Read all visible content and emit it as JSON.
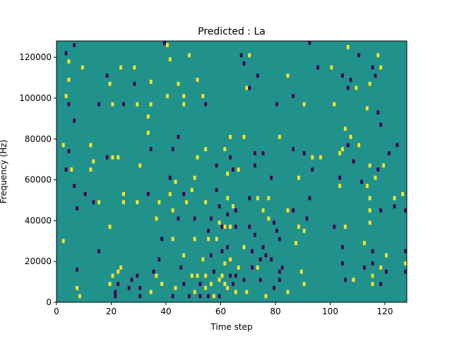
{
  "chart_data": {
    "type": "heatmap",
    "title": "Predicted : La",
    "xlabel": "Time step",
    "ylabel": "Frequency (Hz)",
    "xlim": [
      0,
      128
    ],
    "ylim": [
      0,
      128000
    ],
    "x_ticks": [
      0,
      20,
      40,
      60,
      80,
      100,
      120
    ],
    "x_tick_labels": [
      "0",
      "20",
      "40",
      "60",
      "80",
      "100",
      "120"
    ],
    "y_ticks": [
      0,
      20000,
      40000,
      60000,
      80000,
      100000,
      120000
    ],
    "y_tick_labels": [
      "0",
      "20000",
      "40000",
      "60000",
      "80000",
      "100000",
      "120000"
    ],
    "grid": false,
    "background_value": 0,
    "colors": {
      "low": "#440154",
      "mid": "#21918c",
      "high": "#fde725"
    },
    "cells_note_units": "x = time step, y = frequency in Hz (bin height 2000 Hz), value -1 low / +1 high",
    "cells": [
      {
        "x": 6,
        "y": 125000,
        "v": -1
      },
      {
        "x": 3,
        "y": 121000,
        "v": -1
      },
      {
        "x": 4,
        "y": 117000,
        "v": 1
      },
      {
        "x": 9,
        "y": 114000,
        "v": 1
      },
      {
        "x": 4,
        "y": 108000,
        "v": 1
      },
      {
        "x": 3,
        "y": 100000,
        "v": 1
      },
      {
        "x": 4,
        "y": 96000,
        "v": -1
      },
      {
        "x": 6,
        "y": 88000,
        "v": -1
      },
      {
        "x": 2,
        "y": 76000,
        "v": 1
      },
      {
        "x": 4,
        "y": 73000,
        "v": -1
      },
      {
        "x": 3,
        "y": 64000,
        "v": -1
      },
      {
        "x": 5,
        "y": 64000,
        "v": 1
      },
      {
        "x": 6,
        "y": 56000,
        "v": -1
      },
      {
        "x": 7,
        "y": 45000,
        "v": -1
      },
      {
        "x": 2,
        "y": 29000,
        "v": 1
      },
      {
        "x": 7,
        "y": 15000,
        "v": -1
      },
      {
        "x": 7,
        "y": 6000,
        "v": 1
      },
      {
        "x": 8,
        "y": 2000,
        "v": 1
      },
      {
        "x": 10,
        "y": 52000,
        "v": -1
      },
      {
        "x": 12,
        "y": 76000,
        "v": 1
      },
      {
        "x": 13,
        "y": 68000,
        "v": 1
      },
      {
        "x": 12,
        "y": 64000,
        "v": 1
      },
      {
        "x": 13,
        "y": 48000,
        "v": -1
      },
      {
        "x": 15,
        "y": 48000,
        "v": 1
      },
      {
        "x": 15,
        "y": 96000,
        "v": -1
      },
      {
        "x": 18,
        "y": 110000,
        "v": -1
      },
      {
        "x": 19,
        "y": 106000,
        "v": 1
      },
      {
        "x": 20,
        "y": 96000,
        "v": 1
      },
      {
        "x": 18,
        "y": 70000,
        "v": -1
      },
      {
        "x": 20,
        "y": 70000,
        "v": 1
      },
      {
        "x": 22,
        "y": 70000,
        "v": 1
      },
      {
        "x": 19,
        "y": 36000,
        "v": 1
      },
      {
        "x": 15,
        "y": 24000,
        "v": -1
      },
      {
        "x": 20,
        "y": 12000,
        "v": 1
      },
      {
        "x": 19,
        "y": 8000,
        "v": 1
      },
      {
        "x": 22,
        "y": 14000,
        "v": 1
      },
      {
        "x": 23,
        "y": 16000,
        "v": 1
      },
      {
        "x": 22,
        "y": 8000,
        "v": -1
      },
      {
        "x": 21,
        "y": 4000,
        "v": -1
      },
      {
        "x": 21,
        "y": 2000,
        "v": -1
      },
      {
        "x": 23,
        "y": 114000,
        "v": 1
      },
      {
        "x": 24,
        "y": 96000,
        "v": -1
      },
      {
        "x": 24,
        "y": 48000,
        "v": 1
      },
      {
        "x": 24,
        "y": 52000,
        "v": 1
      },
      {
        "x": 26,
        "y": 6000,
        "v": -1
      },
      {
        "x": 27,
        "y": 10000,
        "v": -1
      },
      {
        "x": 28,
        "y": 114000,
        "v": 1
      },
      {
        "x": 28,
        "y": 106000,
        "v": -1
      },
      {
        "x": 29,
        "y": 96000,
        "v": 1
      },
      {
        "x": 29,
        "y": 48000,
        "v": 1
      },
      {
        "x": 30,
        "y": 66000,
        "v": 1
      },
      {
        "x": 29,
        "y": 12000,
        "v": -1
      },
      {
        "x": 30,
        "y": 6000,
        "v": -1
      },
      {
        "x": 30,
        "y": 2000,
        "v": -1
      },
      {
        "x": 33,
        "y": 82000,
        "v": 1
      },
      {
        "x": 33,
        "y": 90000,
        "v": 1
      },
      {
        "x": 34,
        "y": 107000,
        "v": 1
      },
      {
        "x": 34,
        "y": 96000,
        "v": 1
      },
      {
        "x": 34,
        "y": 74000,
        "v": -1
      },
      {
        "x": 33,
        "y": 52000,
        "v": -1
      },
      {
        "x": 35,
        "y": 14000,
        "v": -1
      },
      {
        "x": 34,
        "y": 4000,
        "v": 1
      },
      {
        "x": 36,
        "y": 40000,
        "v": 1
      },
      {
        "x": 37,
        "y": 48000,
        "v": 1
      },
      {
        "x": 38,
        "y": 30000,
        "v": -1
      },
      {
        "x": 37,
        "y": 20000,
        "v": -1
      },
      {
        "x": 36,
        "y": 12000,
        "v": 1
      },
      {
        "x": 38,
        "y": 8000,
        "v": 1
      },
      {
        "x": 39,
        "y": 126000,
        "v": -1
      },
      {
        "x": 40,
        "y": 125000,
        "v": 1
      },
      {
        "x": 41,
        "y": 118000,
        "v": 1
      },
      {
        "x": 40,
        "y": 100000,
        "v": 1
      },
      {
        "x": 42,
        "y": 74000,
        "v": -1
      },
      {
        "x": 41,
        "y": 60000,
        "v": -1
      },
      {
        "x": 41,
        "y": 52000,
        "v": 1
      },
      {
        "x": 42,
        "y": 44000,
        "v": 1
      },
      {
        "x": 44,
        "y": 106000,
        "v": 1
      },
      {
        "x": 44,
        "y": 80000,
        "v": -1
      },
      {
        "x": 43,
        "y": 58000,
        "v": 1
      },
      {
        "x": 44,
        "y": 40000,
        "v": -1
      },
      {
        "x": 42,
        "y": 30000,
        "v": 1
      },
      {
        "x": 42,
        "y": 2000,
        "v": -1
      },
      {
        "x": 43,
        "y": 6000,
        "v": 1
      },
      {
        "x": 46,
        "y": 100000,
        "v": 1
      },
      {
        "x": 46,
        "y": 96000,
        "v": 1
      },
      {
        "x": 46,
        "y": 52000,
        "v": -1
      },
      {
        "x": 47,
        "y": 48000,
        "v": 1
      },
      {
        "x": 46,
        "y": 22000,
        "v": 1
      },
      {
        "x": 45,
        "y": 16000,
        "v": -1
      },
      {
        "x": 46,
        "y": 8000,
        "v": -1
      },
      {
        "x": 48,
        "y": 120000,
        "v": 1
      },
      {
        "x": 49,
        "y": 54000,
        "v": 1
      },
      {
        "x": 49,
        "y": 12000,
        "v": 1
      },
      {
        "x": 48,
        "y": 2000,
        "v": -1
      },
      {
        "x": 50,
        "y": 60000,
        "v": 1
      },
      {
        "x": 50,
        "y": 30000,
        "v": 1
      },
      {
        "x": 50,
        "y": 40000,
        "v": -1
      },
      {
        "x": 50,
        "y": 4000,
        "v": 1
      },
      {
        "x": 51,
        "y": 108000,
        "v": 1
      },
      {
        "x": 51,
        "y": 70000,
        "v": 1
      },
      {
        "x": 51,
        "y": 12000,
        "v": 1
      },
      {
        "x": 52,
        "y": 8000,
        "v": -1
      },
      {
        "x": 53,
        "y": 100000,
        "v": 1
      },
      {
        "x": 53,
        "y": 20000,
        "v": 1
      },
      {
        "x": 52,
        "y": 2000,
        "v": -1
      },
      {
        "x": 54,
        "y": 96000,
        "v": -1
      },
      {
        "x": 54,
        "y": 74000,
        "v": 1
      },
      {
        "x": 54,
        "y": 48000,
        "v": 1
      },
      {
        "x": 55,
        "y": 30000,
        "v": 1
      },
      {
        "x": 55,
        "y": 34000,
        "v": -1
      },
      {
        "x": 54,
        "y": 12000,
        "v": 1
      },
      {
        "x": 54,
        "y": 6000,
        "v": 1
      },
      {
        "x": 55,
        "y": 2000,
        "v": -1
      },
      {
        "x": 56,
        "y": 40000,
        "v": -1
      },
      {
        "x": 56,
        "y": 22000,
        "v": -1
      },
      {
        "x": 56,
        "y": 8000,
        "v": 1
      },
      {
        "x": 57,
        "y": 14000,
        "v": -1
      },
      {
        "x": 57,
        "y": 2000,
        "v": 1
      },
      {
        "x": 58,
        "y": 66000,
        "v": -1
      },
      {
        "x": 58,
        "y": 54000,
        "v": -1
      },
      {
        "x": 58,
        "y": 30000,
        "v": 1
      },
      {
        "x": 59,
        "y": 46000,
        "v": -1
      },
      {
        "x": 59,
        "y": 38000,
        "v": 1
      },
      {
        "x": 59,
        "y": 10000,
        "v": 1
      },
      {
        "x": 59,
        "y": 2000,
        "v": -1
      },
      {
        "x": 60,
        "y": 36000,
        "v": -1
      },
      {
        "x": 60,
        "y": 24000,
        "v": -1
      },
      {
        "x": 60,
        "y": 12000,
        "v": 1
      },
      {
        "x": 61,
        "y": 74000,
        "v": 1
      },
      {
        "x": 61,
        "y": 36000,
        "v": 1
      },
      {
        "x": 61,
        "y": 18000,
        "v": 1
      },
      {
        "x": 61,
        "y": 8000,
        "v": 1
      },
      {
        "x": 62,
        "y": 62000,
        "v": 1
      },
      {
        "x": 62,
        "y": 50000,
        "v": 1
      },
      {
        "x": 62,
        "y": 42000,
        "v": -1
      },
      {
        "x": 62,
        "y": 26000,
        "v": -1
      },
      {
        "x": 62,
        "y": 6000,
        "v": 1
      },
      {
        "x": 63,
        "y": 80000,
        "v": 1
      },
      {
        "x": 63,
        "y": 70000,
        "v": -1
      },
      {
        "x": 63,
        "y": 36000,
        "v": 1
      },
      {
        "x": 63,
        "y": 20000,
        "v": 1
      },
      {
        "x": 63,
        "y": 12000,
        "v": -1
      },
      {
        "x": 64,
        "y": 64000,
        "v": -1
      },
      {
        "x": 64,
        "y": 46000,
        "v": 1
      },
      {
        "x": 64,
        "y": 8000,
        "v": -1
      },
      {
        "x": 65,
        "y": 44000,
        "v": -1
      },
      {
        "x": 65,
        "y": 36000,
        "v": -1
      },
      {
        "x": 65,
        "y": 12000,
        "v": -1
      },
      {
        "x": 65,
        "y": 4000,
        "v": 1
      },
      {
        "x": 66,
        "y": 64000,
        "v": 1
      },
      {
        "x": 66,
        "y": 16000,
        "v": 1
      },
      {
        "x": 67,
        "y": 120000,
        "v": -1
      },
      {
        "x": 68,
        "y": 116000,
        "v": -1
      },
      {
        "x": 68,
        "y": 80000,
        "v": 1
      },
      {
        "x": 68,
        "y": 26000,
        "v": 1
      },
      {
        "x": 68,
        "y": 10000,
        "v": -1
      },
      {
        "x": 69,
        "y": 104000,
        "v": 1
      },
      {
        "x": 70,
        "y": 120000,
        "v": 1
      },
      {
        "x": 70,
        "y": 104000,
        "v": -1
      },
      {
        "x": 70,
        "y": 50000,
        "v": -1
      },
      {
        "x": 70,
        "y": 36000,
        "v": -1
      },
      {
        "x": 69,
        "y": 4000,
        "v": 1
      },
      {
        "x": 71,
        "y": 24000,
        "v": -1
      },
      {
        "x": 71,
        "y": 16000,
        "v": -1
      },
      {
        "x": 72,
        "y": 72000,
        "v": -1
      },
      {
        "x": 72,
        "y": 66000,
        "v": -1
      },
      {
        "x": 72,
        "y": 32000,
        "v": -1
      },
      {
        "x": 73,
        "y": 110000,
        "v": -1
      },
      {
        "x": 73,
        "y": 50000,
        "v": 1
      },
      {
        "x": 73,
        "y": 16000,
        "v": 1
      },
      {
        "x": 74,
        "y": 20000,
        "v": -1
      },
      {
        "x": 74,
        "y": 10000,
        "v": -1
      },
      {
        "x": 75,
        "y": 72000,
        "v": -1
      },
      {
        "x": 75,
        "y": 44000,
        "v": 1
      },
      {
        "x": 75,
        "y": 26000,
        "v": -1
      },
      {
        "x": 76,
        "y": 22000,
        "v": -1
      },
      {
        "x": 76,
        "y": 2000,
        "v": 1
      },
      {
        "x": 77,
        "y": 50000,
        "v": 1
      },
      {
        "x": 77,
        "y": 40000,
        "v": 1
      },
      {
        "x": 78,
        "y": 60000,
        "v": -1
      },
      {
        "x": 78,
        "y": 20000,
        "v": -1
      },
      {
        "x": 79,
        "y": 38000,
        "v": -1
      },
      {
        "x": 79,
        "y": 6000,
        "v": -1
      },
      {
        "x": 80,
        "y": 96000,
        "v": -1
      },
      {
        "x": 80,
        "y": 34000,
        "v": -1
      },
      {
        "x": 81,
        "y": 80000,
        "v": 1
      },
      {
        "x": 81,
        "y": 30000,
        "v": -1
      },
      {
        "x": 81,
        "y": 14000,
        "v": -1
      },
      {
        "x": 81,
        "y": 10000,
        "v": -1
      },
      {
        "x": 82,
        "y": 16000,
        "v": -1
      },
      {
        "x": 84,
        "y": 110000,
        "v": 1
      },
      {
        "x": 84,
        "y": 44000,
        "v": 1
      },
      {
        "x": 84,
        "y": 4000,
        "v": 1
      },
      {
        "x": 86,
        "y": 100000,
        "v": -1
      },
      {
        "x": 86,
        "y": 74000,
        "v": -1
      },
      {
        "x": 86,
        "y": 44000,
        "v": -1
      },
      {
        "x": 87,
        "y": 28000,
        "v": 1
      },
      {
        "x": 88,
        "y": 60000,
        "v": 1
      },
      {
        "x": 88,
        "y": 36000,
        "v": 1
      },
      {
        "x": 90,
        "y": 96000,
        "v": 1
      },
      {
        "x": 90,
        "y": 72000,
        "v": -1
      },
      {
        "x": 90,
        "y": 34000,
        "v": 1
      },
      {
        "x": 89,
        "y": 14000,
        "v": 1
      },
      {
        "x": 90,
        "y": 8000,
        "v": 1
      },
      {
        "x": 91,
        "y": 40000,
        "v": -1
      },
      {
        "x": 92,
        "y": 126000,
        "v": -1
      },
      {
        "x": 92,
        "y": 50000,
        "v": -1
      },
      {
        "x": 93,
        "y": 70000,
        "v": 1
      },
      {
        "x": 93,
        "y": 64000,
        "v": -1
      },
      {
        "x": 95,
        "y": 114000,
        "v": -1
      },
      {
        "x": 96,
        "y": 70000,
        "v": 1
      },
      {
        "x": 100,
        "y": 114000,
        "v": 1
      },
      {
        "x": 101,
        "y": 96000,
        "v": 1
      },
      {
        "x": 101,
        "y": 36000,
        "v": -1
      },
      {
        "x": 103,
        "y": 72000,
        "v": 1
      },
      {
        "x": 103,
        "y": 60000,
        "v": -1
      },
      {
        "x": 103,
        "y": 56000,
        "v": 1
      },
      {
        "x": 104,
        "y": 110000,
        "v": -1
      },
      {
        "x": 104,
        "y": 74000,
        "v": 1
      },
      {
        "x": 105,
        "y": 84000,
        "v": 1
      },
      {
        "x": 105,
        "y": 36000,
        "v": 1
      },
      {
        "x": 105,
        "y": 10000,
        "v": -1
      },
      {
        "x": 104,
        "y": 26000,
        "v": -1
      },
      {
        "x": 104,
        "y": 18000,
        "v": -1
      },
      {
        "x": 106,
        "y": 124000,
        "v": 1
      },
      {
        "x": 106,
        "y": 104000,
        "v": -1
      },
      {
        "x": 106,
        "y": 76000,
        "v": -1
      },
      {
        "x": 107,
        "y": 108000,
        "v": -1
      },
      {
        "x": 107,
        "y": 80000,
        "v": 1
      },
      {
        "x": 108,
        "y": 68000,
        "v": -1
      },
      {
        "x": 108,
        "y": 10000,
        "v": 1
      },
      {
        "x": 109,
        "y": 104000,
        "v": 1
      },
      {
        "x": 110,
        "y": 120000,
        "v": -1
      },
      {
        "x": 110,
        "y": 76000,
        "v": 1
      },
      {
        "x": 111,
        "y": 58000,
        "v": -1
      },
      {
        "x": 112,
        "y": 28000,
        "v": 1
      },
      {
        "x": 112,
        "y": 16000,
        "v": -1
      },
      {
        "x": 113,
        "y": 94000,
        "v": 1
      },
      {
        "x": 113,
        "y": 56000,
        "v": 1
      },
      {
        "x": 114,
        "y": 50000,
        "v": 1
      },
      {
        "x": 114,
        "y": 44000,
        "v": 1
      },
      {
        "x": 114,
        "y": 38000,
        "v": 1
      },
      {
        "x": 114,
        "y": 106000,
        "v": 1
      },
      {
        "x": 114,
        "y": 66000,
        "v": 1
      },
      {
        "x": 115,
        "y": 114000,
        "v": -1
      },
      {
        "x": 115,
        "y": 24000,
        "v": -1
      },
      {
        "x": 115,
        "y": 18000,
        "v": -1
      },
      {
        "x": 115,
        "y": 12000,
        "v": 1
      },
      {
        "x": 115,
        "y": 8000,
        "v": 1
      },
      {
        "x": 116,
        "y": 110000,
        "v": -1
      },
      {
        "x": 116,
        "y": 60000,
        "v": 1
      },
      {
        "x": 117,
        "y": 120000,
        "v": 1
      },
      {
        "x": 117,
        "y": 92000,
        "v": -1
      },
      {
        "x": 117,
        "y": 64000,
        "v": -1
      },
      {
        "x": 118,
        "y": 114000,
        "v": 1
      },
      {
        "x": 118,
        "y": 86000,
        "v": -1
      },
      {
        "x": 118,
        "y": 44000,
        "v": -1
      },
      {
        "x": 118,
        "y": 16000,
        "v": 1
      },
      {
        "x": 118,
        "y": 8000,
        "v": -1
      },
      {
        "x": 119,
        "y": 66000,
        "v": 1
      },
      {
        "x": 120,
        "y": 22000,
        "v": 1
      },
      {
        "x": 120,
        "y": 14000,
        "v": -1
      },
      {
        "x": 121,
        "y": 72000,
        "v": -1
      },
      {
        "x": 123,
        "y": 50000,
        "v": 1
      },
      {
        "x": 123,
        "y": 46000,
        "v": -1
      },
      {
        "x": 124,
        "y": 76000,
        "v": -1
      },
      {
        "x": 126,
        "y": 52000,
        "v": 1
      },
      {
        "x": 127,
        "y": 44000,
        "v": -1
      },
      {
        "x": 127,
        "y": 18000,
        "v": 1
      },
      {
        "x": 127,
        "y": 14000,
        "v": -1
      },
      {
        "x": 127,
        "y": 24000,
        "v": -1
      }
    ]
  }
}
